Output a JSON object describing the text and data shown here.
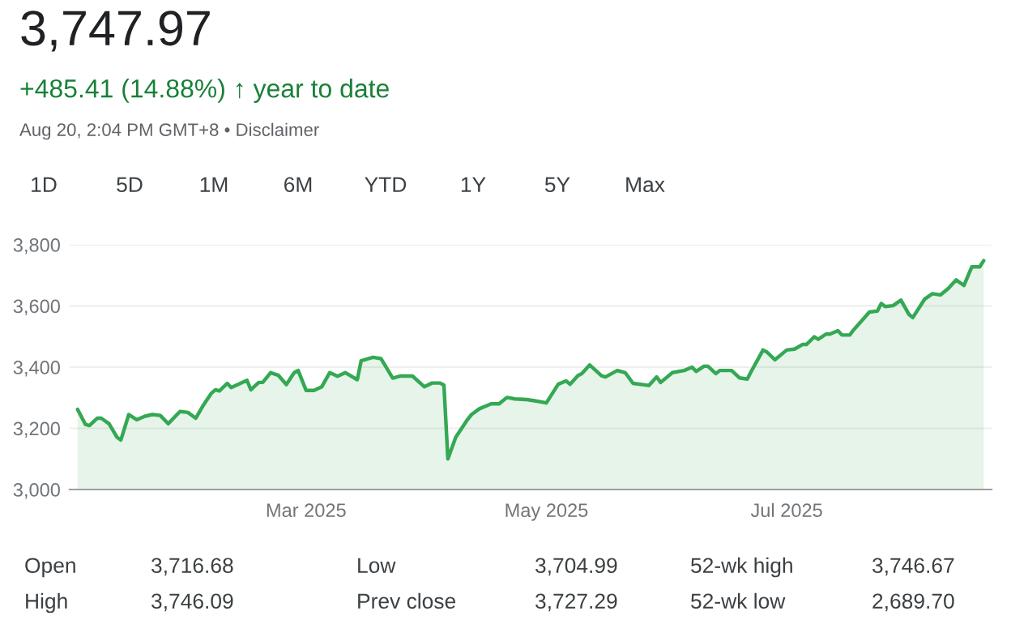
{
  "chart_data": {
    "type": "area",
    "title": "3,747.97",
    "subtitle": "+485.41 (14.88%) ↑ year to date",
    "annotations": [
      "Aug 20, 2:04 PM GMT+8 • Disclaimer",
      "1D",
      "5D",
      "1M",
      "6M",
      "YTD",
      "1Y",
      "5Y",
      "Max",
      "Open",
      "3,716.68",
      "Low",
      "3,704.99",
      "52-wk high",
      "3,746.67",
      "High",
      "3,746.09",
      "Prev close",
      "3,727.29",
      "52-wk low",
      "2,689.70"
    ],
    "x": [
      "2025-01-02",
      "2025-01-04",
      "2025-01-05",
      "2025-01-07",
      "2025-01-08",
      "2025-01-10",
      "2025-01-12",
      "2025-01-13",
      "2025-01-15",
      "2025-01-17",
      "2025-01-19",
      "2025-01-21",
      "2025-01-23",
      "2025-01-25",
      "2025-01-28",
      "2025-01-30",
      "2025-02-01",
      "2025-02-03",
      "2025-02-05",
      "2025-02-06",
      "2025-02-07",
      "2025-02-09",
      "2025-02-10",
      "2025-02-14",
      "2025-02-15",
      "2025-02-17",
      "2025-02-18",
      "2025-02-20",
      "2025-02-22",
      "2025-02-24",
      "2025-02-26",
      "2025-02-27",
      "2025-03-01",
      "2025-03-03",
      "2025-03-05",
      "2025-03-07",
      "2025-03-09",
      "2025-03-11",
      "2025-03-14",
      "2025-03-15",
      "2025-03-18",
      "2025-03-20",
      "2025-03-21",
      "2025-03-23",
      "2025-03-25",
      "2025-03-28",
      "2025-03-31",
      "2025-04-02",
      "2025-04-04",
      "2025-04-05",
      "2025-04-06",
      "2025-04-08",
      "2025-04-11",
      "2025-04-12",
      "2025-04-14",
      "2025-04-17",
      "2025-04-19",
      "2025-04-21",
      "2025-04-23",
      "2025-04-26",
      "2025-04-28",
      "2025-05-01",
      "2025-05-04",
      "2025-05-06",
      "2025-05-07",
      "2025-05-09",
      "2025-05-10",
      "2025-05-12",
      "2025-05-15",
      "2025-05-16",
      "2025-05-19",
      "2025-05-21",
      "2025-05-23",
      "2025-05-27",
      "2025-05-29",
      "2025-05-30",
      "2025-06-02",
      "2025-06-05",
      "2025-06-07",
      "2025-06-08",
      "2025-06-10",
      "2025-06-11",
      "2025-06-13",
      "2025-06-14",
      "2025-06-17",
      "2025-06-19",
      "2025-06-21",
      "2025-06-22",
      "2025-06-25",
      "2025-06-26",
      "2025-06-28",
      "2025-07-01",
      "2025-07-03",
      "2025-07-05",
      "2025-07-06",
      "2025-07-08",
      "2025-07-09",
      "2025-07-11",
      "2025-07-12",
      "2025-07-14",
      "2025-07-15",
      "2025-07-17",
      "2025-07-18",
      "2025-07-22",
      "2025-07-24",
      "2025-07-25",
      "2025-07-26",
      "2025-07-28",
      "2025-07-30",
      "2025-08-01",
      "2025-08-02",
      "2025-08-05",
      "2025-08-07",
      "2025-08-09",
      "2025-08-11",
      "2025-08-13",
      "2025-08-15",
      "2025-08-17",
      "2025-08-19",
      "2025-08-20"
    ],
    "series": [
      {
        "color": "#34a853",
        "values": [
          3262,
          3213,
          3209,
          3233,
          3233,
          3215,
          3171,
          3162,
          3245,
          3228,
          3239,
          3245,
          3242,
          3215,
          3255,
          3252,
          3233,
          3277,
          3315,
          3326,
          3322,
          3347,
          3333,
          3357,
          3326,
          3350,
          3350,
          3382,
          3373,
          3343,
          3382,
          3389,
          3324,
          3324,
          3336,
          3382,
          3370,
          3382,
          3359,
          3421,
          3432,
          3428,
          3407,
          3364,
          3371,
          3371,
          3336,
          3348,
          3348,
          3341,
          3100,
          3171,
          3229,
          3245,
          3264,
          3280,
          3280,
          3301,
          3296,
          3294,
          3290,
          3283,
          3344,
          3355,
          3344,
          3372,
          3379,
          3407,
          3372,
          3368,
          3389,
          3382,
          3347,
          3340,
          3368,
          3350,
          3382,
          3389,
          3400,
          3386,
          3403,
          3403,
          3379,
          3389,
          3389,
          3365,
          3361,
          3386,
          3456,
          3449,
          3424,
          3456,
          3459,
          3474,
          3474,
          3499,
          3491,
          3508,
          3508,
          3519,
          3505,
          3505,
          3522,
          3580,
          3583,
          3608,
          3598,
          3601,
          3619,
          3573,
          3562,
          3622,
          3640,
          3636,
          3657,
          3685,
          3667,
          3728,
          3728,
          3748
        ]
      }
    ],
    "xlim": [
      "2024-12-31",
      "2025-08-22"
    ],
    "xticks": [
      {
        "value": "2025-03-01",
        "label": "Mar 2025"
      },
      {
        "value": "2025-05-01",
        "label": "May 2025"
      },
      {
        "value": "2025-07-01",
        "label": "Jul 2025"
      }
    ],
    "ylim": [
      3000,
      3800
    ],
    "yticks": [
      {
        "value": 3000,
        "label": "3,000"
      },
      {
        "value": 3200,
        "label": "3,200"
      },
      {
        "value": 3400,
        "label": "3,400"
      },
      {
        "value": 3600,
        "label": "3,600"
      },
      {
        "value": 3800,
        "label": "3,800"
      }
    ],
    "grid": "y"
  }
}
